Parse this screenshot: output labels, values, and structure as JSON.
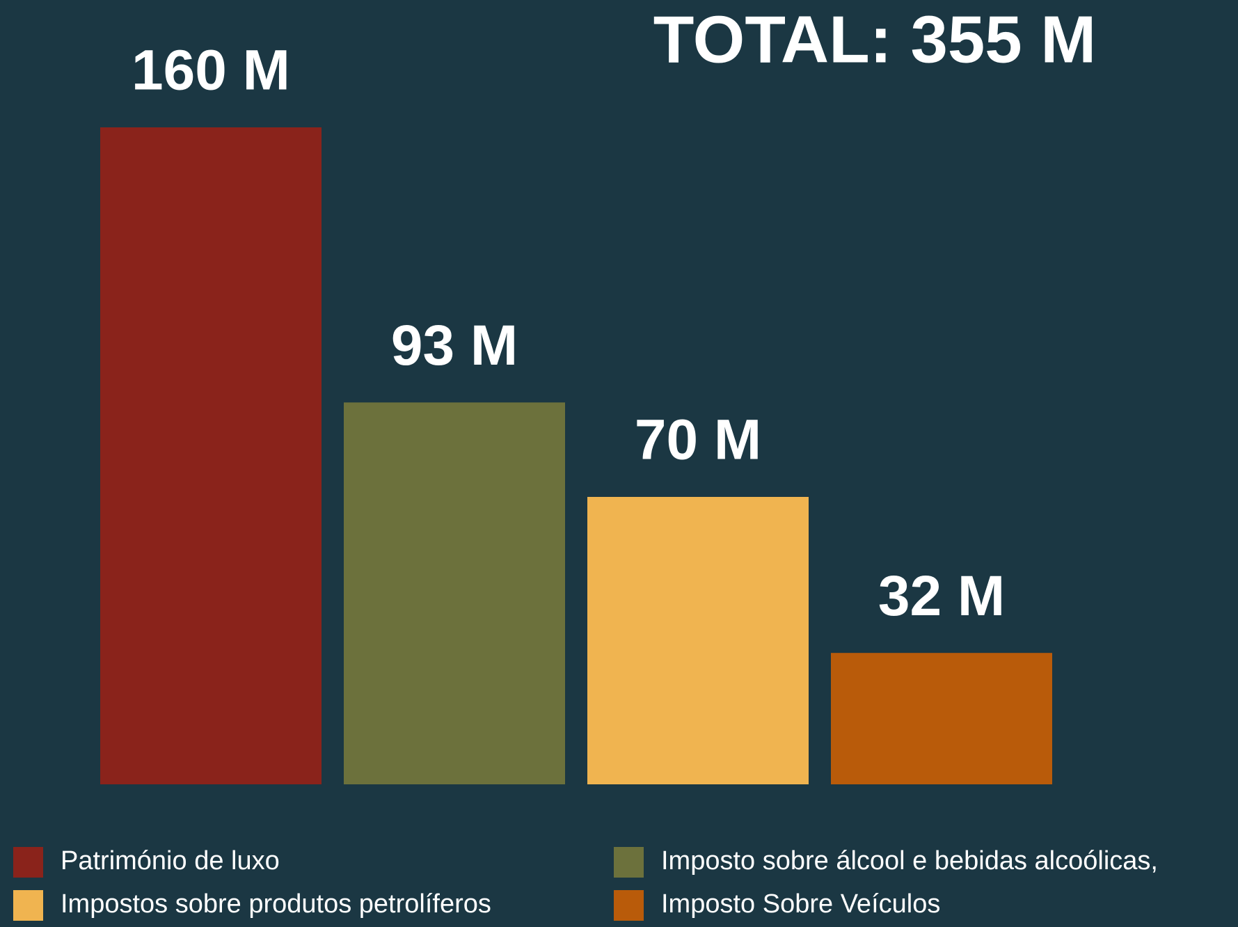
{
  "chart_data": {
    "type": "bar",
    "title": "TOTAL: 355 M",
    "categories": [
      "Património de luxo",
      "Imposto sobre álcool e bebidas alcoólicas,",
      "Impostos sobre produtos petrolíferos",
      "Imposto Sobre Veículos"
    ],
    "values": [
      160,
      93,
      70,
      32
    ],
    "value_labels": [
      "160 M",
      "93 M",
      "70 M",
      "32 M"
    ],
    "colors": [
      "#8a231b",
      "#6c713c",
      "#f0b450",
      "#b95b0a"
    ]
  }
}
